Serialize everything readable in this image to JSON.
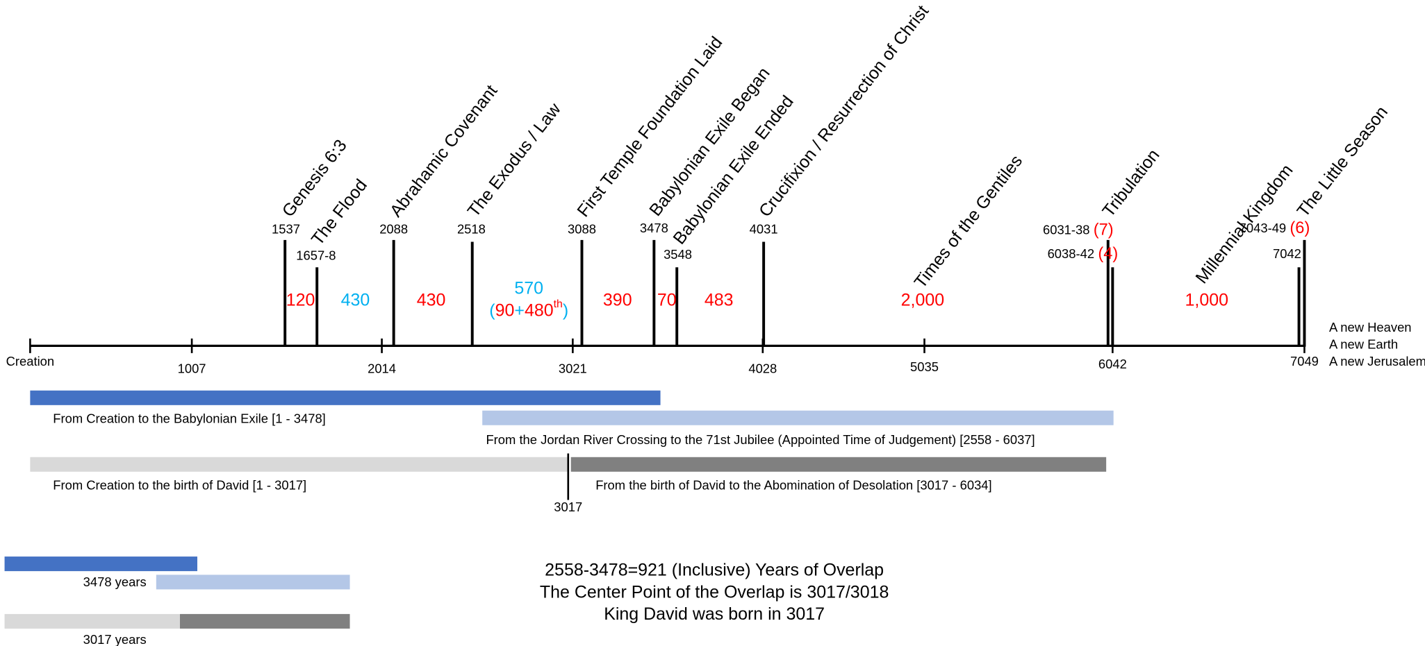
{
  "axis_ticks": [
    "Creation",
    "1007",
    "2014",
    "3021",
    "4028",
    "5035",
    "6042",
    "7049"
  ],
  "events": [
    {
      "name": "Genesis 6:3",
      "year": "1537"
    },
    {
      "name": "The Flood",
      "year": "1657-8"
    },
    {
      "name": "Abrahamic Covenant",
      "year": "2088"
    },
    {
      "name": "The Exodus / Law",
      "year": "2518"
    },
    {
      "name": "First Temple Foundation Laid",
      "year": "3088"
    },
    {
      "name": "Babylonian Exile Began",
      "year": "3478"
    },
    {
      "name": "Babylonian Exile Ended",
      "year": "3548"
    },
    {
      "name": "Crucifixion / Resurrection of Christ",
      "year": "4031"
    },
    {
      "name": "Times of the Gentiles"
    },
    {
      "name": "Tribulation",
      "year": "6031-38",
      "extra": "(7)"
    },
    {
      "year": "6038-42",
      "extra": "(4)"
    },
    {
      "name": "Millennial Kingdom"
    },
    {
      "name": "The Little Season",
      "year": "7043-49",
      "extra": "(6)"
    },
    {
      "year": "7042"
    }
  ],
  "spans": [
    "120",
    "430",
    "430",
    "570",
    "390",
    "70",
    "483",
    "2,000",
    "1,000"
  ],
  "span_570_detail": [
    "(",
    "90",
    "+",
    "480",
    "th",
    ")"
  ],
  "end_notes": [
    "A new Heaven",
    "A new Earth",
    "A new Jerusalem"
  ],
  "bars": [
    {
      "caption": "From Creation to the Babylonian Exile [1 - 3478]"
    },
    {
      "caption": "From the Jordan River Crossing to the 71st Jubilee (Appointed Time of Judgement) [2558 - 6037]"
    },
    {
      "caption": "From Creation to the birth of David [1 - 3017]"
    },
    {
      "caption": "From the birth of David to the Abomination of Desolation [3017 - 6034]"
    }
  ],
  "divider_label": "3017",
  "small_bars": {
    "top_label": "3478 years",
    "bottom_label": "3017 years"
  },
  "summary": [
    "2558-3478=921 (Inclusive) Years of Overlap",
    "The Center Point of the Overlap is 3017/3018",
    "King David was born in 3017"
  ]
}
